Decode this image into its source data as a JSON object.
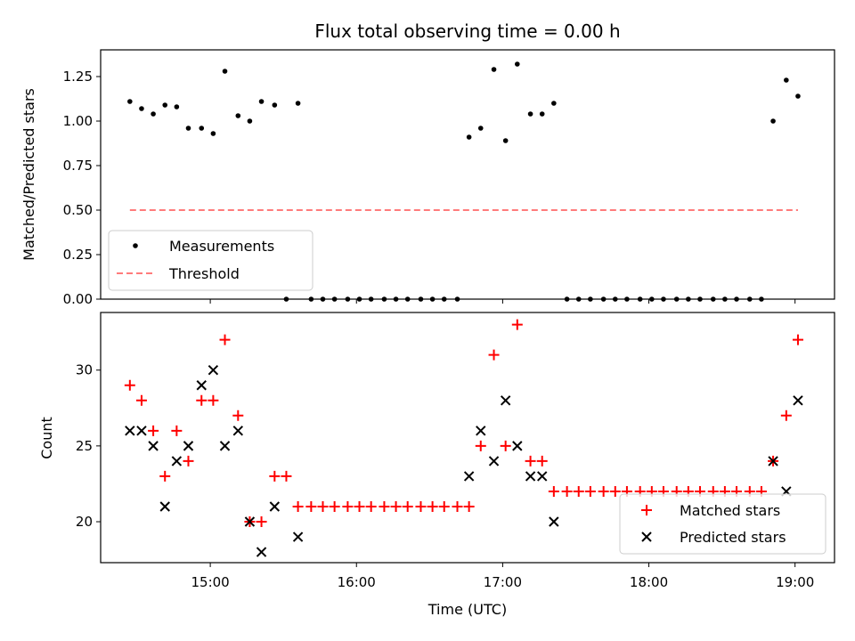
{
  "chart_data": [
    {
      "type": "scatter",
      "title": "Flux total observing time = 0.00 h",
      "xlabel": "",
      "ylabel": "Matched/Predicted stars",
      "ylim": [
        0,
        1.4
      ],
      "xlim_hours": [
        14.25,
        19.27
      ],
      "yticks": [
        "0.00",
        "0.25",
        "0.50",
        "0.75",
        "1.00",
        "1.25"
      ],
      "ytick_values": [
        0,
        0.25,
        0.5,
        0.75,
        1.0,
        1.25
      ],
      "legend_position": "lower-left",
      "series": [
        {
          "name": "Measurements",
          "marker": "dot",
          "color": "#000000",
          "x": [
            14.45,
            14.53,
            14.61,
            14.69,
            14.77,
            14.85,
            14.94,
            15.02,
            15.1,
            15.19,
            15.27,
            15.35,
            15.44,
            15.6,
            15.52,
            15.69,
            15.77,
            15.85,
            15.94,
            16.02,
            16.1,
            16.19,
            16.27,
            16.35,
            16.44,
            16.52,
            16.6,
            16.69,
            16.77,
            16.85,
            16.94,
            17.02,
            17.1,
            17.19,
            17.27,
            17.35,
            17.44,
            17.52,
            17.6,
            17.69,
            17.77,
            17.85,
            17.94,
            18.02,
            18.1,
            18.19,
            18.27,
            18.35,
            18.44,
            18.52,
            18.6,
            18.69,
            18.77,
            18.85,
            18.94,
            19.02
          ],
          "y": [
            1.11,
            1.07,
            1.04,
            1.09,
            1.08,
            0.96,
            0.96,
            0.93,
            1.28,
            1.03,
            1.0,
            1.11,
            1.09,
            1.1,
            0,
            0,
            0,
            0,
            0,
            0,
            0,
            0,
            0,
            0,
            0,
            0,
            0,
            0,
            0.91,
            0.96,
            1.29,
            0.89,
            1.32,
            1.04,
            1.04,
            1.1,
            0,
            0,
            0,
            0,
            0,
            0,
            0,
            0,
            0,
            0,
            0,
            0,
            0,
            0,
            0,
            0,
            0,
            1.0,
            1.23,
            1.14
          ]
        },
        {
          "name": "Threshold",
          "style": "dashed",
          "color": "#ff7b7b",
          "x": [
            14.45,
            19.02
          ],
          "y": [
            0.5,
            0.5
          ]
        }
      ]
    },
    {
      "type": "scatter",
      "title": "",
      "xlabel": "Time (UTC)",
      "ylabel": "Count",
      "ylim": [
        17.3,
        33.8
      ],
      "xlim_hours": [
        14.25,
        19.27
      ],
      "yticks": [
        "20",
        "25",
        "30"
      ],
      "ytick_values": [
        20,
        25,
        30
      ],
      "xticks": [
        "15:00",
        "16:00",
        "17:00",
        "18:00",
        "19:00"
      ],
      "xtick_values": [
        15,
        16,
        17,
        18,
        19
      ],
      "legend_position": "lower-right",
      "series": [
        {
          "name": "Matched stars",
          "marker": "plus",
          "color": "#ff0000",
          "x": [
            14.45,
            14.53,
            14.61,
            14.69,
            14.77,
            14.85,
            14.94,
            15.02,
            15.1,
            15.19,
            15.27,
            15.35,
            15.44,
            15.52,
            15.6,
            15.69,
            15.77,
            15.85,
            15.94,
            16.02,
            16.1,
            16.19,
            16.27,
            16.35,
            16.44,
            16.52,
            16.6,
            16.69,
            16.77,
            16.85,
            16.94,
            17.02,
            17.1,
            17.19,
            17.27,
            17.35,
            17.44,
            17.52,
            17.6,
            17.69,
            17.77,
            17.85,
            17.94,
            18.02,
            18.1,
            18.19,
            18.27,
            18.35,
            18.44,
            18.52,
            18.6,
            18.69,
            18.77,
            18.85,
            18.94,
            19.02
          ],
          "y": [
            29,
            28,
            26,
            23,
            26,
            24,
            28,
            28,
            32,
            27,
            20,
            20,
            23,
            23,
            21,
            21,
            21,
            21,
            21,
            21,
            21,
            21,
            21,
            21,
            21,
            21,
            21,
            21,
            21,
            25,
            31,
            25,
            33,
            24,
            24,
            22,
            22,
            22,
            22,
            22,
            22,
            22,
            22,
            22,
            22,
            22,
            22,
            22,
            22,
            22,
            22,
            22,
            22,
            24,
            27,
            32
          ]
        },
        {
          "name": "Predicted stars",
          "marker": "x",
          "color": "#000000",
          "x": [
            14.45,
            14.53,
            14.61,
            14.69,
            14.77,
            14.85,
            14.94,
            15.02,
            15.1,
            15.19,
            15.27,
            15.35,
            15.44,
            15.6,
            16.77,
            16.85,
            16.94,
            17.02,
            17.1,
            17.19,
            17.27,
            17.35,
            18.85,
            18.94,
            19.02
          ],
          "y": [
            26,
            26,
            25,
            21,
            24,
            25,
            29,
            30,
            25,
            26,
            20,
            18,
            21,
            19,
            23,
            26,
            24,
            28,
            25,
            23,
            23,
            20,
            24,
            22,
            28
          ]
        }
      ]
    }
  ]
}
